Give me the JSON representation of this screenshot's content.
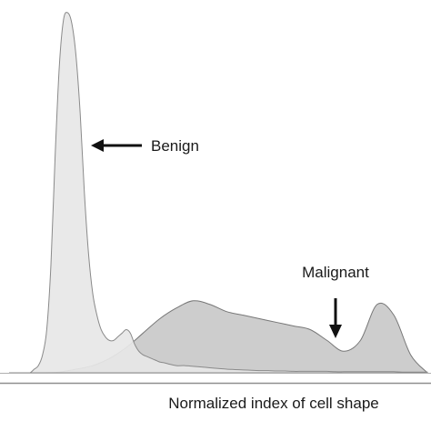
{
  "chart_data": {
    "type": "area",
    "title": "",
    "xlabel": "Normalized index of cell shape",
    "ylabel": "",
    "grid": false,
    "legend": "none",
    "annotations": [
      {
        "text": "Benign",
        "arrow": "left",
        "target_series": "benign"
      },
      {
        "text": "Malignant",
        "arrow": "down",
        "target_series": "malignant"
      }
    ],
    "series": [
      {
        "key": "benign",
        "fill": "#e7e7e7",
        "stroke": "#8a8a8a",
        "x": [
          0,
          0.5,
          1,
          1.5,
          2,
          2.5,
          3,
          3.5,
          4,
          4.5,
          5,
          5.5,
          6,
          6.5,
          7,
          7.5,
          8,
          8.5,
          9,
          9.5,
          10,
          10.5,
          11,
          11.5,
          12,
          12.5,
          13,
          13.5,
          14,
          14.5,
          15,
          15.5,
          16,
          16.5,
          17,
          17.5,
          18,
          18.5,
          19,
          20,
          21,
          22,
          23,
          24,
          25,
          26,
          27,
          28,
          29,
          30,
          31,
          32,
          33,
          34,
          35,
          36,
          37,
          38,
          39,
          40,
          41,
          42,
          43,
          44,
          45,
          46,
          47,
          48,
          49,
          50
        ],
        "values": [
          0,
          0,
          0,
          0,
          0,
          0,
          0.01,
          0.02,
          0.05,
          0.12,
          0.3,
          0.6,
          0.85,
          0.98,
          1.0,
          0.97,
          0.88,
          0.72,
          0.5,
          0.33,
          0.22,
          0.16,
          0.12,
          0.1,
          0.09,
          0.09,
          0.1,
          0.11,
          0.12,
          0.11,
          0.08,
          0.06,
          0.05,
          0.045,
          0.04,
          0.035,
          0.03,
          0.028,
          0.025,
          0.02,
          0.02,
          0.018,
          0.016,
          0.014,
          0.012,
          0.01,
          0.009,
          0.008,
          0.007,
          0.006,
          0.006,
          0.005,
          0.005,
          0.004,
          0.004,
          0.004,
          0.004,
          0.004,
          0.003,
          0.003,
          0.003,
          0.003,
          0.003,
          0.003,
          0.003,
          0.003,
          0.002,
          0.002,
          0.002,
          0.002
        ]
      },
      {
        "key": "malignant",
        "fill": "#c9c9c9",
        "stroke": "#777777",
        "x": [
          0,
          2,
          4,
          6,
          8,
          10,
          12,
          14,
          16,
          18,
          20,
          22,
          24,
          26,
          28,
          30,
          32,
          34,
          36,
          38,
          40,
          42,
          44,
          46,
          48,
          50
        ],
        "values": [
          0,
          0,
          0,
          0.002,
          0.01,
          0.02,
          0.04,
          0.07,
          0.11,
          0.15,
          0.18,
          0.2,
          0.19,
          0.17,
          0.16,
          0.15,
          0.14,
          0.13,
          0.12,
          0.09,
          0.06,
          0.09,
          0.19,
          0.16,
          0.05,
          0.0
        ]
      }
    ],
    "xlim": [
      0,
      50
    ],
    "ylim": [
      0,
      1.0
    ]
  }
}
